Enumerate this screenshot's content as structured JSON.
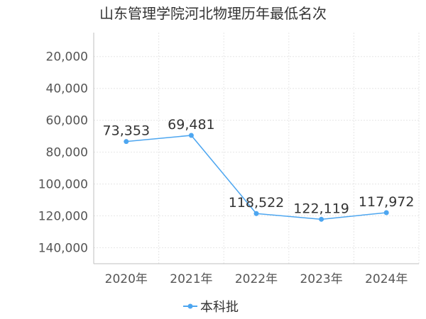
{
  "chart_data": {
    "type": "line",
    "title": "山东管理学院河北物理历年最低名次",
    "categories": [
      "2020年",
      "2021年",
      "2022年",
      "2023年",
      "2024年"
    ],
    "series": [
      {
        "name": "本科批",
        "values": [
          73353,
          69481,
          118522,
          122119,
          117972
        ],
        "data_labels": [
          "73,353",
          "69,481",
          "118,522",
          "122,119",
          "117,972"
        ],
        "color": "#4da6f0"
      }
    ],
    "y_axis": {
      "inverted": true,
      "ylim": [
        5000,
        150000
      ],
      "ticks": [
        20000,
        40000,
        60000,
        80000,
        100000,
        120000,
        140000
      ],
      "tick_labels": [
        "20,000",
        "40,000",
        "60,000",
        "80,000",
        "100,000",
        "120,000",
        "140,000"
      ]
    },
    "grid": true,
    "legend_position": "bottom"
  }
}
